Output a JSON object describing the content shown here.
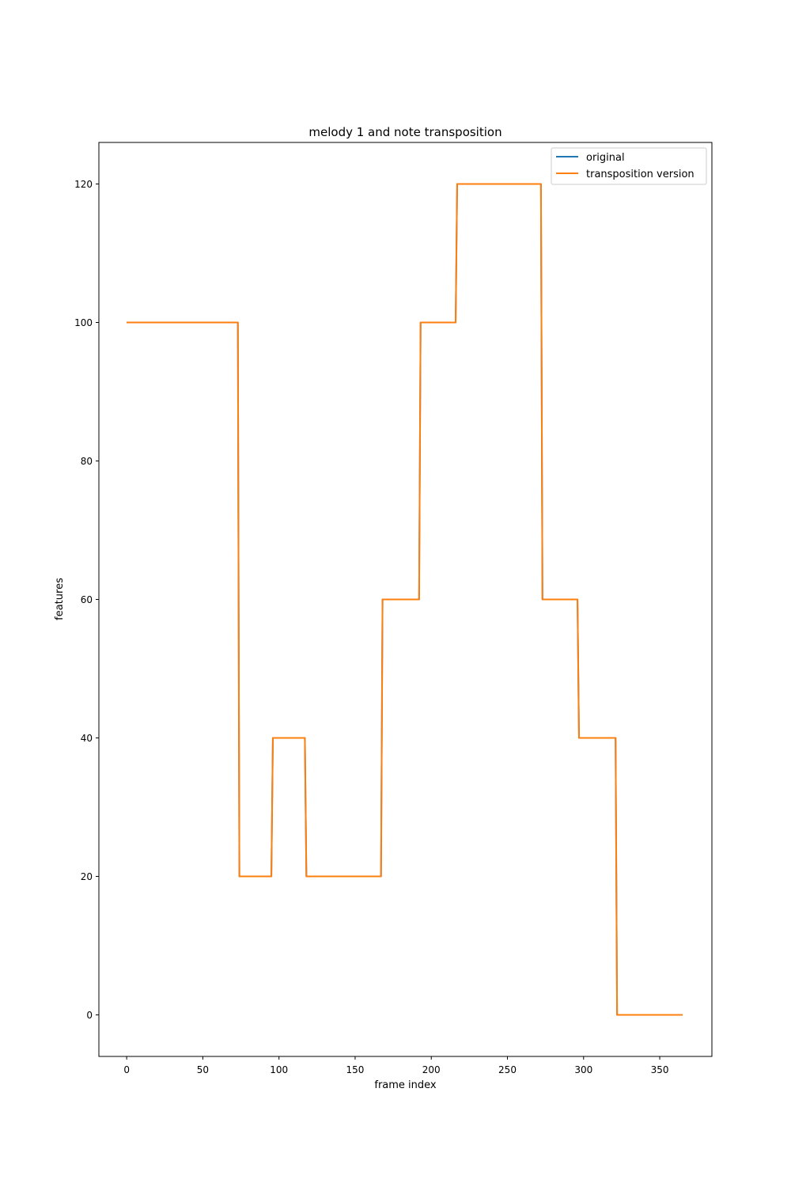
{
  "chart_data": {
    "type": "line",
    "title": "melody 1 and note transposition",
    "xlabel": "frame index",
    "ylabel": "features",
    "xlim": [
      -18.25,
      384.25
    ],
    "ylim": [
      -6,
      126
    ],
    "xticks": [
      0,
      50,
      100,
      150,
      200,
      250,
      300,
      350
    ],
    "yticks": [
      0,
      20,
      40,
      60,
      80,
      100,
      120
    ],
    "grid": false,
    "legend_position": "top-right",
    "series": [
      {
        "name": "original",
        "color": "#1f77b4",
        "x": [
          0,
          73,
          74,
          95,
          96,
          117,
          118,
          167,
          168,
          192,
          193,
          216,
          217,
          272,
          273,
          296,
          297,
          321,
          322,
          365
        ],
        "y": [
          100,
          100,
          20,
          20,
          40,
          40,
          20,
          20,
          60,
          60,
          100,
          100,
          120,
          120,
          60,
          60,
          40,
          40,
          0,
          0
        ]
      },
      {
        "name": "transposition version",
        "color": "#ff7f0e",
        "x": [
          0,
          73,
          74,
          95,
          96,
          117,
          118,
          167,
          168,
          192,
          193,
          216,
          217,
          272,
          273,
          296,
          297,
          321,
          322,
          365
        ],
        "y": [
          100,
          100,
          20,
          20,
          40,
          40,
          20,
          20,
          60,
          60,
          100,
          100,
          120,
          120,
          60,
          60,
          40,
          40,
          0,
          0
        ]
      }
    ]
  }
}
